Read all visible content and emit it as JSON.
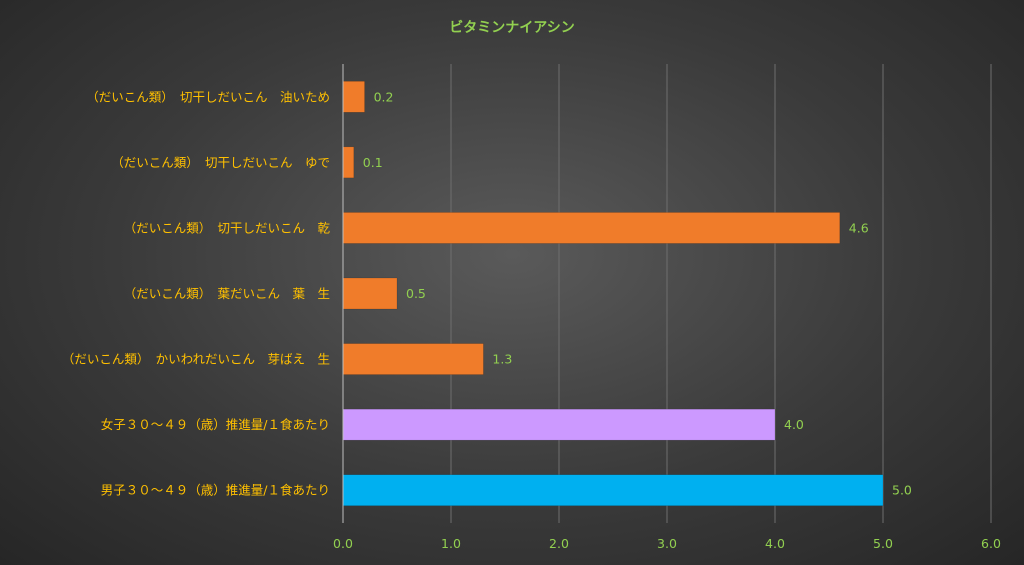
{
  "chart_data": {
    "type": "bar",
    "orientation": "horizontal",
    "title": "ビタミンナイアシン",
    "categories": [
      "（だいこん類）　切干しだいこん　油いため",
      "（だいこん類）　切干しだいこん　ゆで",
      "（だいこん類）　切干しだいこん　乾",
      "（だいこん類）　葉だいこん　葉　生",
      "（だいこん類）　かいわれだいこん　芽ばえ　生",
      "女子３０～４９（歳）推進量/１食あたり",
      "男子３０～４９（歳）推進量/１食あたり"
    ],
    "values": [
      0.2,
      0.1,
      4.6,
      0.5,
      1.3,
      4.0,
      5.0
    ],
    "data_labels": [
      "0.2",
      "0.1",
      "4.6",
      "0.5",
      "1.3",
      "4.0",
      "5.0"
    ],
    "bar_colors": [
      "#f07c2a",
      "#f07c2a",
      "#f07c2a",
      "#f07c2a",
      "#f07c2a",
      "#cc99ff",
      "#00b0f0"
    ],
    "xlim": [
      0,
      6
    ],
    "x_ticks": [
      "0.0",
      "1.0",
      "2.0",
      "3.0",
      "4.0",
      "5.0",
      "6.0"
    ],
    "grid": true,
    "legend": "none",
    "colors": {
      "title": "#92d050",
      "category_labels": "#ffc000",
      "tick_labels": "#92d050",
      "data_labels": "#92d050"
    }
  }
}
